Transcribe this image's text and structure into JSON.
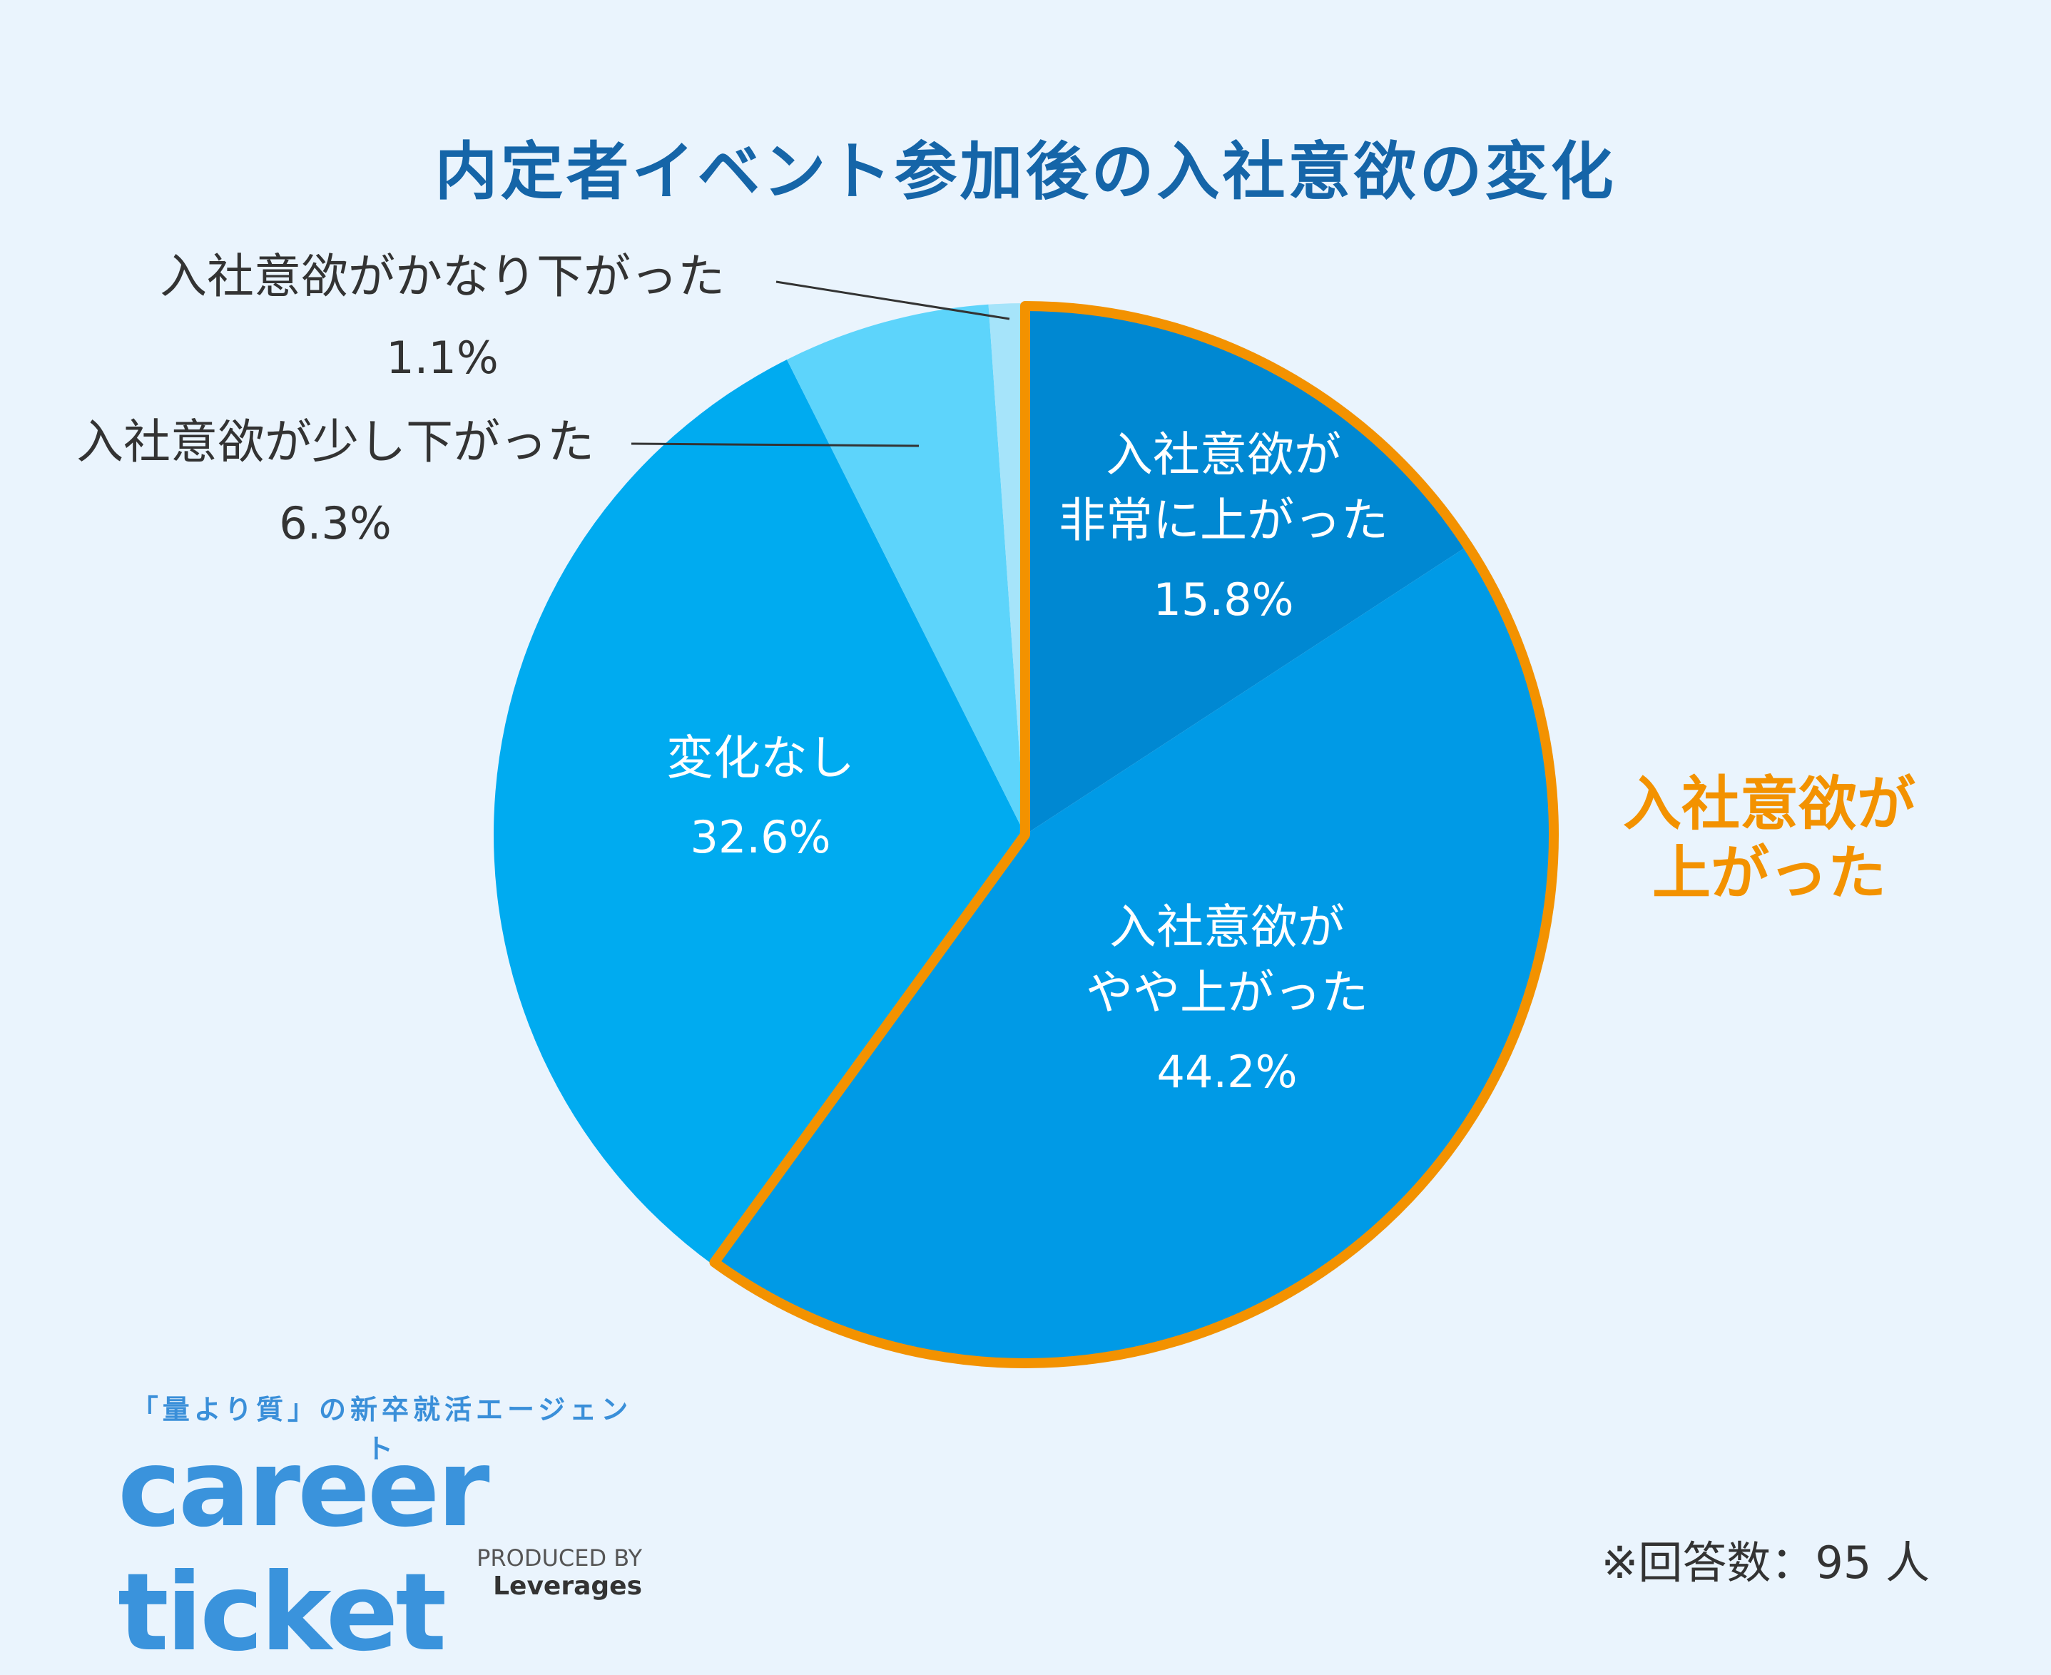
{
  "chart_data": {
    "type": "pie",
    "title": "内定者イベント参加後の入社意欲の変化",
    "slices": [
      {
        "lines": [
          "入社意欲が",
          "非常に上がった"
        ],
        "value": 15.8,
        "value_label": "15.8%",
        "color": "#0088d2"
      },
      {
        "lines": [
          "入社意欲が",
          "やや上がった"
        ],
        "value": 44.2,
        "value_label": "44.2%",
        "color": "#009ae6"
      },
      {
        "lines": [
          "変化なし"
        ],
        "value": 32.6,
        "value_label": "32.6%",
        "color": "#00abf0"
      },
      {
        "lines": [
          "入社意欲が少し下がった"
        ],
        "value": 6.3,
        "value_label": "6.3%",
        "color": "#5dd4fb"
      },
      {
        "lines": [
          "入社意欲がかなり下がった"
        ],
        "value": 1.1,
        "value_label": "1.1%",
        "color": "#a6e4fa"
      }
    ],
    "highlight": {
      "label_lines": [
        "入社意欲が",
        "上がった"
      ],
      "slices": [
        0,
        1
      ],
      "color": "#f39200"
    }
  },
  "brand": {
    "tagline": "「量より質」の新卒就活エージェント",
    "logo": "career ticket",
    "produced_prefix": "PRODUCED BY",
    "produced_name": "Leverages"
  },
  "footnote": "※回答数：95 人"
}
